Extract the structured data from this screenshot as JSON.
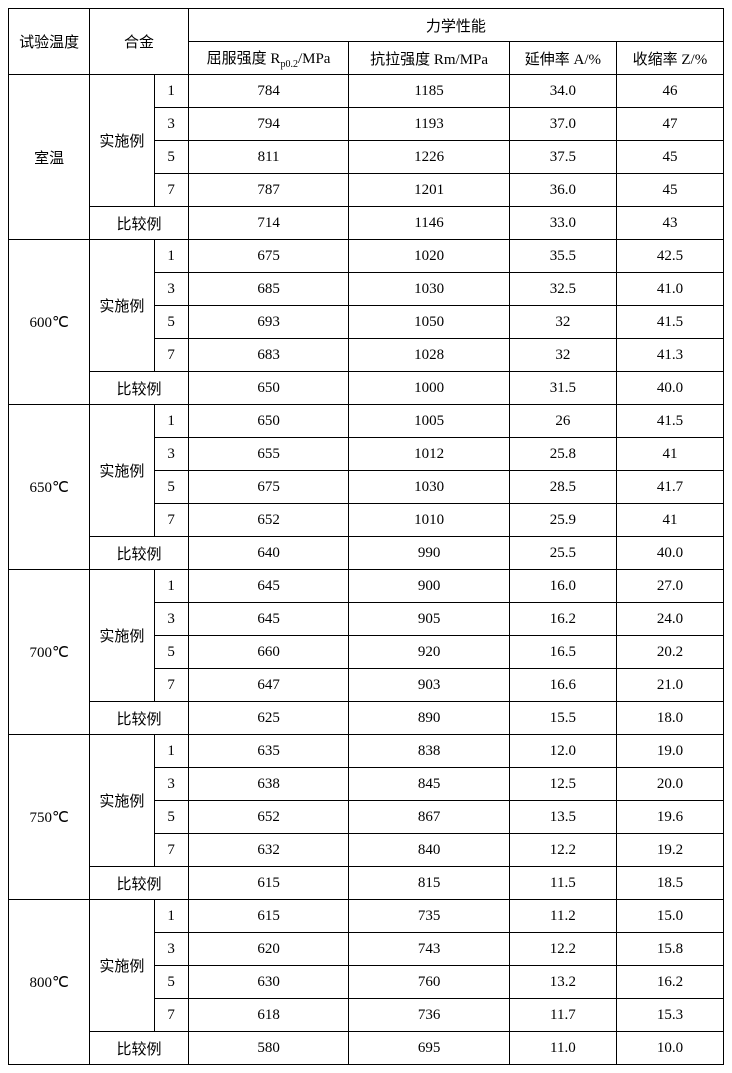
{
  "headers": {
    "temp": "试验温度",
    "alloy": "合金",
    "mech": "力学性能",
    "rp": "屈服强度 R",
    "rp_sub": "p0.2",
    "rp_unit": "/MPa",
    "rm": "抗拉强度 Rm/MPa",
    "a": "延伸率 A/%",
    "z": "收缩率 Z/%",
    "example": "实施例",
    "compare": "比较例"
  },
  "groups": [
    {
      "temp": "室温",
      "rows": [
        {
          "idx": "1",
          "rp": "784",
          "rm": "1185",
          "a": "34.0",
          "z": "46"
        },
        {
          "idx": "3",
          "rp": "794",
          "rm": "1193",
          "a": "37.0",
          "z": "47"
        },
        {
          "idx": "5",
          "rp": "811",
          "rm": "1226",
          "a": "37.5",
          "z": "45"
        },
        {
          "idx": "7",
          "rp": "787",
          "rm": "1201",
          "a": "36.0",
          "z": "45"
        }
      ],
      "compare": {
        "rp": "714",
        "rm": "1146",
        "a": "33.0",
        "z": "43"
      }
    },
    {
      "temp": "600℃",
      "rows": [
        {
          "idx": "1",
          "rp": "675",
          "rm": "1020",
          "a": "35.5",
          "z": "42.5"
        },
        {
          "idx": "3",
          "rp": "685",
          "rm": "1030",
          "a": "32.5",
          "z": "41.0"
        },
        {
          "idx": "5",
          "rp": "693",
          "rm": "1050",
          "a": "32",
          "z": "41.5"
        },
        {
          "idx": "7",
          "rp": "683",
          "rm": "1028",
          "a": "32",
          "z": "41.3"
        }
      ],
      "compare": {
        "rp": "650",
        "rm": "1000",
        "a": "31.5",
        "z": "40.0"
      }
    },
    {
      "temp": "650℃",
      "rows": [
        {
          "idx": "1",
          "rp": "650",
          "rm": "1005",
          "a": "26",
          "z": "41.5"
        },
        {
          "idx": "3",
          "rp": "655",
          "rm": "1012",
          "a": "25.8",
          "z": "41"
        },
        {
          "idx": "5",
          "rp": "675",
          "rm": "1030",
          "a": "28.5",
          "z": "41.7"
        },
        {
          "idx": "7",
          "rp": "652",
          "rm": "1010",
          "a": "25.9",
          "z": "41"
        }
      ],
      "compare": {
        "rp": "640",
        "rm": "990",
        "a": "25.5",
        "z": "40.0"
      }
    },
    {
      "temp": "700℃",
      "rows": [
        {
          "idx": "1",
          "rp": "645",
          "rm": "900",
          "a": "16.0",
          "z": "27.0"
        },
        {
          "idx": "3",
          "rp": "645",
          "rm": "905",
          "a": "16.2",
          "z": "24.0"
        },
        {
          "idx": "5",
          "rp": "660",
          "rm": "920",
          "a": "16.5",
          "z": "20.2"
        },
        {
          "idx": "7",
          "rp": "647",
          "rm": "903",
          "a": "16.6",
          "z": "21.0"
        }
      ],
      "compare": {
        "rp": "625",
        "rm": "890",
        "a": "15.5",
        "z": "18.0"
      }
    },
    {
      "temp": "750℃",
      "rows": [
        {
          "idx": "1",
          "rp": "635",
          "rm": "838",
          "a": "12.0",
          "z": "19.0"
        },
        {
          "idx": "3",
          "rp": "638",
          "rm": "845",
          "a": "12.5",
          "z": "20.0"
        },
        {
          "idx": "5",
          "rp": "652",
          "rm": "867",
          "a": "13.5",
          "z": "19.6"
        },
        {
          "idx": "7",
          "rp": "632",
          "rm": "840",
          "a": "12.2",
          "z": "19.2"
        }
      ],
      "compare": {
        "rp": "615",
        "rm": "815",
        "a": "11.5",
        "z": "18.5"
      }
    },
    {
      "temp": "800℃",
      "rows": [
        {
          "idx": "1",
          "rp": "615",
          "rm": "735",
          "a": "11.2",
          "z": "15.0"
        },
        {
          "idx": "3",
          "rp": "620",
          "rm": "743",
          "a": "12.2",
          "z": "15.8"
        },
        {
          "idx": "5",
          "rp": "630",
          "rm": "760",
          "a": "13.2",
          "z": "16.2"
        },
        {
          "idx": "7",
          "rp": "618",
          "rm": "736",
          "a": "11.7",
          "z": "15.3"
        }
      ],
      "compare": {
        "rp": "580",
        "rm": "695",
        "a": "11.0",
        "z": "10.0"
      }
    }
  ]
}
